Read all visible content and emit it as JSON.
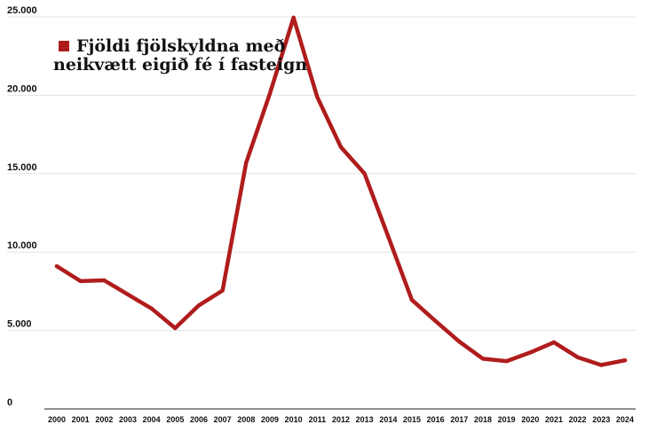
{
  "chart_data": {
    "type": "line",
    "legend_lines": [
      "Fjöldi fjölskyldna með",
      "neikvætt eigið fé í fasteign"
    ],
    "legend_position": "top-left",
    "grid": true,
    "x": [
      "2000",
      "2001",
      "2002",
      "2003",
      "2004",
      "2005",
      "2006",
      "2007",
      "2008",
      "2009",
      "2010",
      "2011",
      "2012",
      "2013",
      "2014",
      "2015",
      "2016",
      "2017",
      "2018",
      "2019",
      "2020",
      "2021",
      "2022",
      "2023",
      "2024"
    ],
    "series": [
      {
        "values": [
          9100,
          8150,
          8200,
          7300,
          6400,
          5150,
          6600,
          7550,
          15700,
          20100,
          24950,
          19900,
          16700,
          15000,
          11000,
          6950,
          5600,
          4300,
          3200,
          3050,
          3600,
          4250,
          3300,
          2800,
          3100
        ],
        "color": "#b01c1c"
      }
    ],
    "yticks": [
      {
        "value": 0,
        "label": "0"
      },
      {
        "value": 5000,
        "label": "5.000"
      },
      {
        "value": 10000,
        "label": "10.000"
      },
      {
        "value": 15000,
        "label": "15.000"
      },
      {
        "value": 20000,
        "label": "20.000"
      },
      {
        "value": 25000,
        "label": "25.000"
      }
    ],
    "ylim": [
      0,
      25000
    ],
    "colors": {
      "line": "#b01c1c",
      "grid": "#e3e3e3",
      "axis": "#222222"
    }
  }
}
